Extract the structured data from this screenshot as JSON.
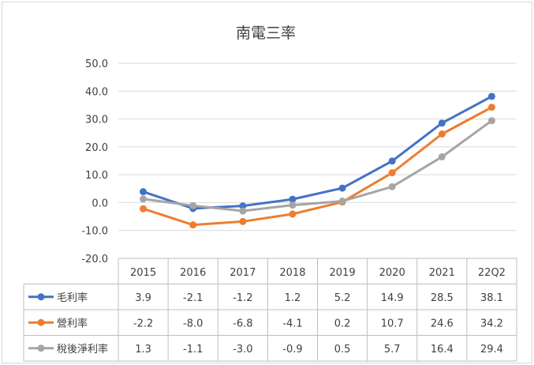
{
  "chart_data": {
    "type": "line",
    "title": "南電三率",
    "categories": [
      "2015",
      "2016",
      "2017",
      "2018",
      "2019",
      "2020",
      "2021",
      "22Q2"
    ],
    "ylim": [
      -20,
      50
    ],
    "yticks": [
      "50.0",
      "40.0",
      "30.0",
      "20.0",
      "10.0",
      "0.0",
      "-10.0",
      "-20.0"
    ],
    "grid": true,
    "legend": "data-table-left",
    "series": [
      {
        "name": "毛利率",
        "color": "#4472c4",
        "values": [
          3.9,
          -2.1,
          -1.2,
          1.2,
          5.2,
          14.9,
          28.5,
          38.1
        ],
        "labels": [
          "3.9",
          "-2.1",
          "-1.2",
          "1.2",
          "5.2",
          "14.9",
          "28.5",
          "38.1"
        ]
      },
      {
        "name": "營利率",
        "color": "#ed7d31",
        "values": [
          -2.2,
          -8.0,
          -6.8,
          -4.1,
          0.2,
          10.7,
          24.6,
          34.2
        ],
        "labels": [
          "-2.2",
          "-8.0",
          "-6.8",
          "-4.1",
          "0.2",
          "10.7",
          "24.6",
          "34.2"
        ]
      },
      {
        "name": "稅後淨利率",
        "color": "#a5a5a5",
        "values": [
          1.3,
          -1.1,
          -3.0,
          -0.9,
          0.5,
          5.7,
          16.4,
          29.4
        ],
        "labels": [
          "1.3",
          "-1.1",
          "-3.0",
          "-0.9",
          "0.5",
          "5.7",
          "16.4",
          "29.4"
        ]
      }
    ]
  }
}
